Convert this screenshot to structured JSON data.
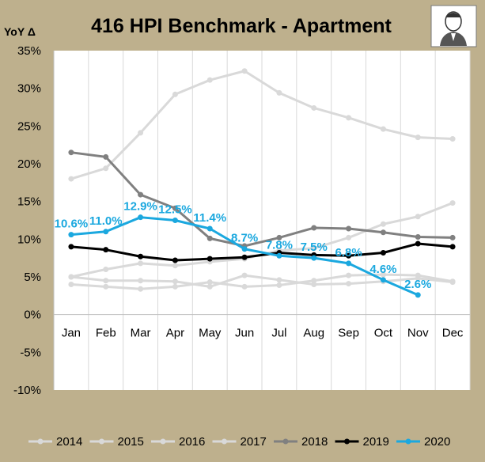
{
  "chart_data": {
    "type": "line",
    "title": "416 HPI Benchmark - Apartment",
    "ylabel": "YoY Δ",
    "xlabel": "",
    "categories": [
      "Jan",
      "Feb",
      "Mar",
      "Apr",
      "May",
      "Jun",
      "Jul",
      "Aug",
      "Sep",
      "Oct",
      "Nov",
      "Dec"
    ],
    "ylim": [
      -10,
      35
    ],
    "yticks": [
      "-10%",
      "-5%",
      "0%",
      "5%",
      "10%",
      "15%",
      "20%",
      "25%",
      "30%",
      "35%"
    ],
    "grid": "vertical",
    "legend": "bottom",
    "series": [
      {
        "name": "2014",
        "color": "#d9d9d9",
        "values": [
          4.0,
          3.7,
          3.4,
          3.7,
          4.3,
          3.7,
          3.9,
          4.5,
          5.2,
          5.3,
          5.2,
          4.4
        ]
      },
      {
        "name": "2015",
        "color": "#d9d9d9",
        "values": [
          5.0,
          4.5,
          4.5,
          4.4,
          3.7,
          5.2,
          4.6,
          4.0,
          4.1,
          4.4,
          4.8,
          4.3
        ]
      },
      {
        "name": "2016",
        "color": "#d9d9d9",
        "values": [
          5.0,
          6.0,
          6.8,
          6.5,
          7.0,
          7.4,
          8.5,
          8.8,
          10.2,
          12.0,
          13.0,
          14.8
        ]
      },
      {
        "name": "2017",
        "color": "#d9d9d9",
        "values": [
          18.0,
          19.4,
          24.1,
          29.2,
          31.1,
          32.3,
          29.4,
          27.4,
          26.1,
          24.6,
          23.5,
          23.3
        ]
      },
      {
        "name": "2018",
        "color": "#808080",
        "values": [
          21.5,
          20.9,
          15.9,
          14.1,
          10.1,
          9.1,
          10.2,
          11.5,
          11.4,
          10.9,
          10.3,
          10.2
        ]
      },
      {
        "name": "2019",
        "color": "#000000",
        "values": [
          9.0,
          8.6,
          7.7,
          7.2,
          7.4,
          7.6,
          8.2,
          7.9,
          7.8,
          8.2,
          9.4,
          9.0
        ]
      },
      {
        "name": "2020",
        "color": "#1ba8df",
        "values": [
          10.6,
          11.0,
          12.9,
          12.5,
          11.4,
          8.7,
          7.8,
          7.5,
          6.8,
          4.6,
          2.6,
          null
        ]
      }
    ],
    "data_labels": {
      "series": "2020",
      "texts": [
        "10.6%",
        "11.0%",
        "12.9%",
        "12.5%",
        "11.4%",
        "8.7%",
        "7.8%",
        "7.5%",
        "6.8%",
        "4.6%",
        "2.6%"
      ]
    }
  }
}
